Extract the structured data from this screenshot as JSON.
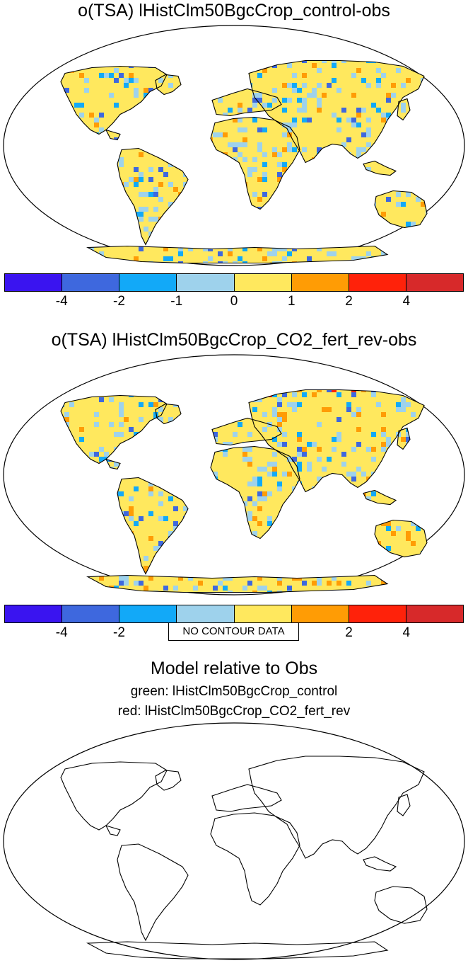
{
  "panels": [
    {
      "title": "o(TSA) lHistClm50BgcCrop_control-obs"
    },
    {
      "title": "o(TSA) lHistClm50BgcCrop_CO2_fert_rev-obs"
    }
  ],
  "colorbar": {
    "colors": [
      "#3a14f0",
      "#3e68de",
      "#12a9f8",
      "#9ed2ec",
      "#ffe85e",
      "#ff9c05",
      "#ff220a",
      "#d7292a"
    ],
    "tick_labels": [
      "-4",
      "-2",
      "-1",
      "0",
      "1",
      "2",
      "4"
    ]
  },
  "bottom_panel": {
    "title": "Model relative to Obs",
    "legend_green": "green: lHistClm50BgcCrop_control",
    "legend_red": "red: lHistClm50BgcCrop_CO2_fert_rev",
    "no_data_label": "NO CONTOUR DATA"
  }
}
